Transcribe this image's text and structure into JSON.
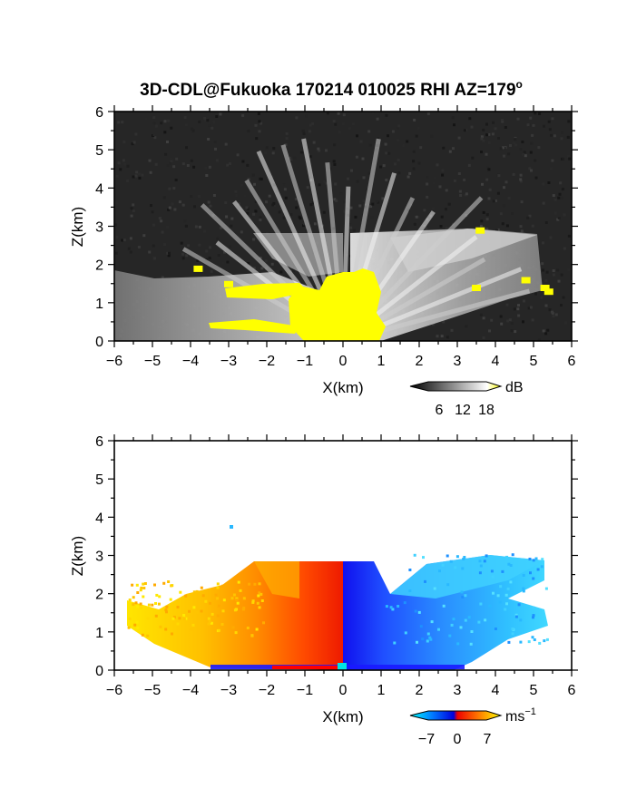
{
  "title_main": "3D-CDL@Fukuoka 170214 010025 RHI AZ=179",
  "title_degree": "o",
  "chart_data": [
    {
      "type": "heatmap",
      "quantity": "reflectivity",
      "xlabel": "X(km)",
      "ylabel": "Z(km)",
      "xlim": [
        -6,
        6
      ],
      "ylim": [
        0,
        6
      ],
      "xticks": [
        "−6",
        "−5",
        "−4",
        "−3",
        "−2",
        "−1",
        "0",
        "1",
        "2",
        "3",
        "4",
        "5",
        "6"
      ],
      "yticks": [
        "0",
        "1",
        "2",
        "3",
        "4",
        "5",
        "6"
      ],
      "colorbar": {
        "label": "dB",
        "ticks": [
          "6",
          "12",
          "18"
        ],
        "tick_values": [
          6,
          12,
          18
        ],
        "range": [
          0,
          20
        ],
        "colors": [
          "#000000",
          "#ffffff",
          "#ffff00"
        ]
      },
      "echo_top_km": 2.8,
      "echo_regions": [
        {
          "x": [
            -5.9,
            -0.6
          ],
          "z": [
            0.0,
            2.0
          ],
          "level_db": 10
        },
        {
          "x": [
            -2.3,
            0.0
          ],
          "z": [
            2.0,
            2.8
          ],
          "level_db": 12
        },
        {
          "x": [
            0.9,
            5.1
          ],
          "z": [
            0.0,
            2.8
          ],
          "level_db": 11
        },
        {
          "x": [
            -0.9,
            1.0
          ],
          "z": [
            0.0,
            1.9
          ],
          "level_db": 20
        }
      ],
      "yellow_patches": [
        {
          "x": -3.8,
          "z": 1.9
        },
        {
          "x": -3.0,
          "z": 1.5
        },
        {
          "x": 3.6,
          "z": 2.9
        },
        {
          "x": 3.5,
          "z": 1.4
        },
        {
          "x": 4.8,
          "z": 1.6
        },
        {
          "x": 5.3,
          "z": 1.4
        },
        {
          "x": 5.4,
          "z": 1.3
        }
      ]
    },
    {
      "type": "heatmap",
      "quantity": "radial velocity",
      "xlabel": "X(km)",
      "ylabel": "Z(km)",
      "xlim": [
        -6,
        6
      ],
      "ylim": [
        0,
        6
      ],
      "xticks": [
        "−6",
        "−5",
        "−4",
        "−3",
        "−2",
        "−1",
        "0",
        "1",
        "2",
        "3",
        "4",
        "5",
        "6"
      ],
      "yticks": [
        "0",
        "1",
        "2",
        "3",
        "4",
        "5",
        "6"
      ],
      "colorbar": {
        "label": "ms",
        "label_sup": "−1",
        "ticks": [
          "−7",
          "0",
          "7"
        ],
        "tick_values": [
          -7,
          0,
          7
        ],
        "range": [
          -10,
          10
        ],
        "colors": [
          "#00ffff",
          "#0000ff",
          "#ff0000",
          "#ffff00"
        ]
      },
      "echo_top_km": 2.8,
      "velocity_regions": [
        {
          "x": [
            -5.9,
            -3.0
          ],
          "z": [
            0.0,
            1.9
          ],
          "velocity_ms": 8
        },
        {
          "x": [
            -3.0,
            -1.5
          ],
          "z": [
            0.0,
            2.8
          ],
          "velocity_ms": 6
        },
        {
          "x": [
            -1.5,
            -0.5
          ],
          "z": [
            0.0,
            2.8
          ],
          "velocity_ms": 3
        },
        {
          "x": [
            -0.5,
            0.0
          ],
          "z": [
            0.0,
            2.8
          ],
          "velocity_ms": 1
        },
        {
          "x": [
            0.0,
            0.6
          ],
          "z": [
            0.0,
            2.8
          ],
          "velocity_ms": -1
        },
        {
          "x": [
            0.6,
            2.5
          ],
          "z": [
            0.0,
            2.5
          ],
          "velocity_ms": -3
        },
        {
          "x": [
            2.5,
            5.4
          ],
          "z": [
            0.0,
            2.9
          ],
          "velocity_ms": -6
        }
      ],
      "isolated_points": [
        {
          "x": -2.9,
          "z": 3.7,
          "velocity_ms": -7
        }
      ]
    }
  ]
}
